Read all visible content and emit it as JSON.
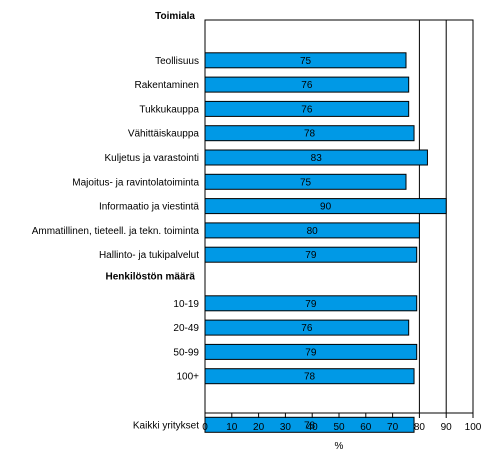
{
  "chart_data": {
    "type": "bar",
    "orientation": "horizontal",
    "groups": [
      {
        "heading": "Toimiala",
        "categories": [
          "Teollisuus",
          "Rakentaminen",
          "Tukkukauppa",
          "Vähittäiskauppa",
          "Kuljetus ja varastointi",
          "Majoitus- ja ravintolatoiminta",
          "Informaatio ja viestintä",
          "Ammatillinen, tieteell. ja tekn. toiminta",
          "Hallinto- ja tukipalvelut"
        ],
        "values": [
          75,
          76,
          76,
          78,
          83,
          75,
          90,
          80,
          79
        ]
      },
      {
        "heading": "Henkilöstön määrä",
        "categories": [
          "10-19",
          "20-49",
          "50-99",
          "100+"
        ],
        "values": [
          79,
          76,
          79,
          78
        ]
      },
      {
        "heading": "",
        "categories": [
          "Kaikki yritykset"
        ],
        "values": [
          78
        ]
      }
    ],
    "xlabel": "%",
    "xlim": [
      0,
      100
    ],
    "xticks": [
      0,
      10,
      20,
      30,
      40,
      50,
      60,
      70,
      80,
      90,
      100
    ],
    "vertical_gridlines": [
      80,
      90,
      100
    ],
    "bar_color": "#0099e6",
    "bar_outline": "#000000",
    "legend": "none"
  }
}
